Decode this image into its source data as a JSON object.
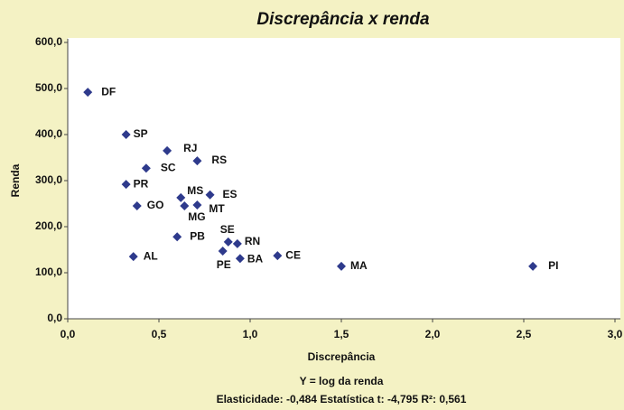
{
  "chart_data": {
    "type": "scatter",
    "title": "Discrepância x renda",
    "x_label": "Discrepância",
    "y_label": "Renda",
    "annotations": [
      "Y = log da renda",
      "Elasticidade: -0,484  Estatística t: -4,795  R²: 0,561"
    ],
    "series": [
      {
        "color": "#2e3a8c",
        "labels": [
          "DF",
          "SP",
          "RJ",
          "RS",
          "SC",
          "PR",
          "MS",
          "ES",
          "GO",
          "MG",
          "MT",
          "PB",
          "SE",
          "RN",
          "PE",
          "BA",
          "CE",
          "AL",
          "MA",
          "PI"
        ],
        "x": [
          0.11,
          0.32,
          0.545,
          0.71,
          0.43,
          0.32,
          0.62,
          0.78,
          0.38,
          0.64,
          0.71,
          0.6,
          0.88,
          0.93,
          0.85,
          0.945,
          1.15,
          0.36,
          1.5,
          2.55
        ],
        "values": [
          492,
          400,
          365,
          343,
          327,
          292,
          263,
          269,
          245,
          245,
          247,
          178,
          167,
          163,
          147,
          131,
          137,
          135,
          114,
          114
        ]
      }
    ],
    "xlim": [
      0,
      3
    ],
    "xticks": [
      {
        "value": 0,
        "label": "0,0"
      },
      {
        "value": 0.5,
        "label": "0,5"
      },
      {
        "value": 1,
        "label": "1,0"
      },
      {
        "value": 1.5,
        "label": "1,5"
      },
      {
        "value": 2,
        "label": "2,0"
      },
      {
        "value": 2.5,
        "label": "2,5"
      },
      {
        "value": 3,
        "label": "3,0"
      }
    ],
    "ylim": [
      0,
      600
    ],
    "yticks": [
      {
        "value": 0,
        "label": "0,0"
      },
      {
        "value": 100,
        "label": "100,0"
      },
      {
        "value": 200,
        "label": "200,0"
      },
      {
        "value": 300,
        "label": "300,0"
      },
      {
        "value": 400,
        "label": "400,0"
      },
      {
        "value": 500,
        "label": "500,0"
      },
      {
        "value": 600,
        "label": "600,0"
      }
    ]
  }
}
